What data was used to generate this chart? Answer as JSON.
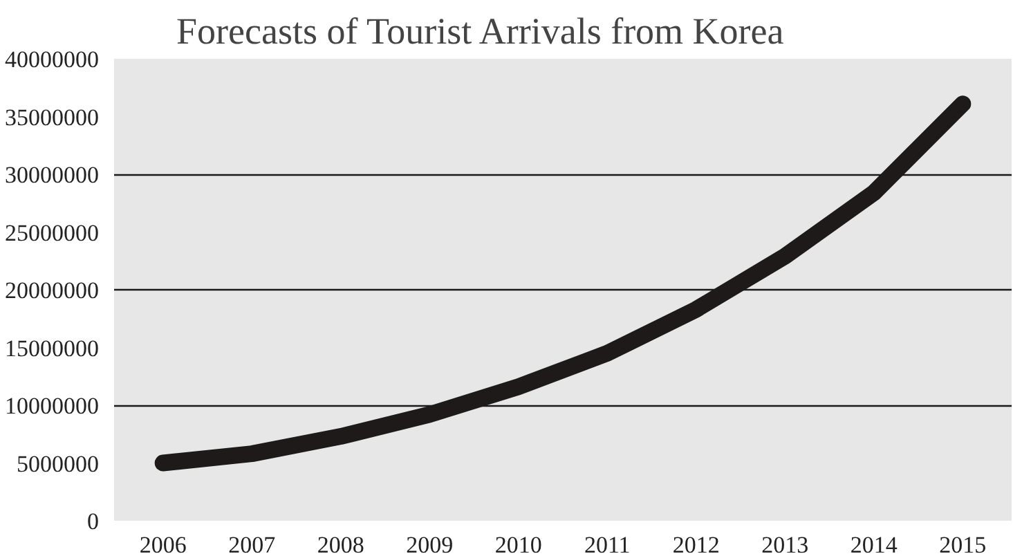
{
  "chart_data": {
    "type": "line",
    "title": "Forecasts of Tourist Arrivals from Korea",
    "categories": [
      "2006",
      "2007",
      "2008",
      "2009",
      "2010",
      "2011",
      "2012",
      "2013",
      "2014",
      "2015"
    ],
    "series": [
      {
        "color": "#1e1a1a",
        "values": [
          5000000,
          5800000,
          7300000,
          9200000,
          11600000,
          14500000,
          18300000,
          22900000,
          28400000,
          36100000
        ]
      }
    ],
    "ylim": [
      0,
      40000000
    ],
    "yticks": [
      0,
      5000000,
      10000000,
      15000000,
      20000000,
      25000000,
      30000000,
      35000000,
      40000000
    ],
    "grid": "y",
    "marker": "none",
    "line_style": "solid"
  }
}
